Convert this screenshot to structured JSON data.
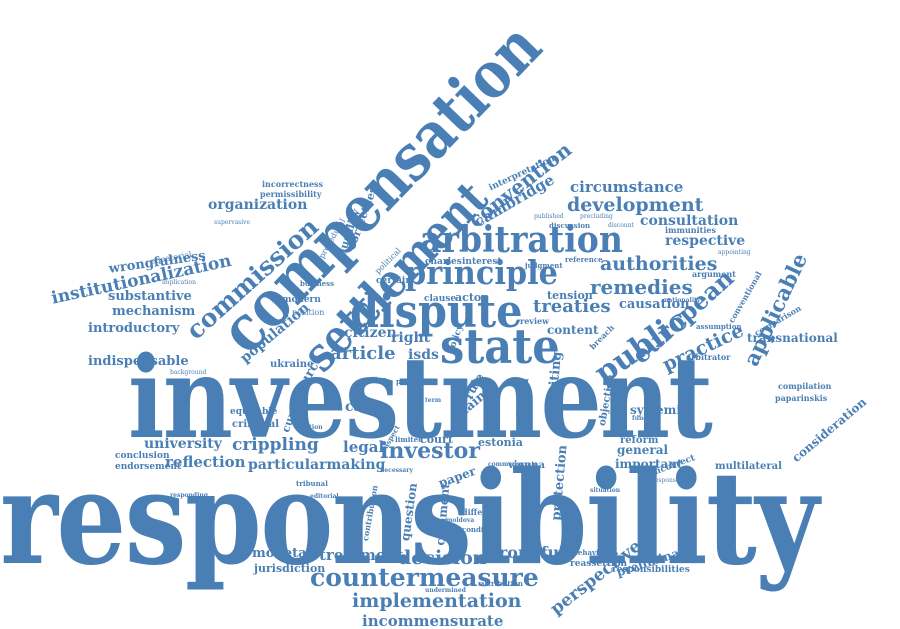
{
  "colors": {
    "word": "#4a7fb5",
    "background": "#ffffff"
  },
  "words": {
    "responsibility": "responsibility",
    "investment": "investment",
    "compensation": "compensation",
    "settlement": "settlement",
    "dispute": "dispute",
    "state": "state",
    "arbitration": "arbitration",
    "principle": "principle",
    "commission": "commission",
    "countermeasure": "countermeasure",
    "implementation": "implementation",
    "incommensurate": "incommensurate",
    "institutionalization": "institutionalization",
    "public": "public",
    "european": "european",
    "applicable": "applicable",
    "practice": "practice",
    "remedies": "remedies",
    "authorities": "authorities",
    "development": "development",
    "convention": "convention",
    "cambridge": "cambridge",
    "circumstance": "circumstance",
    "consultation": "consultation",
    "respective": "respective",
    "treaties": "treaties",
    "organization": "organization",
    "substantive": "substantive",
    "mechanism": "mechanism",
    "introductory": "introductory",
    "wrongfulness": "wrongfulness",
    "equatorial": "equatorial",
    "indispensable": "indispensable",
    "population": "population",
    "article": "article",
    "citizen": "citizen",
    "right": "right",
    "isds": "isds",
    "source": "source",
    "university": "university",
    "crippling": "crippling",
    "reflection": "reflection",
    "particularmaking": "particularmaking",
    "investor": "investor",
    "legal": "legal",
    "case": "case",
    "current": "current",
    "conclusion": "conclusion",
    "endorsement": "endorsement",
    "monetary": "monetary",
    "treatment": "treatment",
    "decision": "decision",
    "wrongful": "wrongful",
    "jurisdiction": "jurisdiction",
    "perspective": "perspective",
    "preliminary": "preliminary",
    "reassertion": "reassertion",
    "responsibilities": "responsibilities",
    "protection": "protection",
    "revisiting": "revisiting",
    "systemic": "systemic",
    "important": "important",
    "general": "general",
    "reform": "reform",
    "incorrect": "incorrect",
    "multilateral": "multilateral",
    "consideration": "consideration",
    "transnational": "transnational",
    "comparison": "comparison",
    "compilation": "compilation",
    "paparinskis": "paparinskis",
    "assumption": "assumption",
    "conventional": "conventional",
    "arbitrator": "arbitrator",
    "causation": "causation",
    "tension": "tension",
    "content": "content",
    "actor": "actor",
    "court": "court",
    "estonia": "estonia",
    "vienna": "vienna",
    "paper": "paper",
    "comment": "comment",
    "question": "question",
    "union": "union",
    "claim": "claim",
    "rule": "rule",
    "objection": "objection",
    "ukraine": "ukraine",
    "criminal": "criminal",
    "equitable": "equitable",
    "modern": "modern",
    "position": "position",
    "certain": "certain",
    "political": "political",
    "correctness": "correctness",
    "causality": "causality",
    "incorrectness": "incorrectness",
    "permissibility": "permissibility",
    "procedural": "procedural",
    "interpretation": "interpretation",
    "judgment": "judgment",
    "interest": "interest",
    "charles": "charles",
    "clause": "clause",
    "discussion": "discussion",
    "reference": "reference",
    "immunities": "immunities",
    "argument": "argument",
    "nationality": "nationality",
    "policy": "policy",
    "different": "different",
    "condition": "condition",
    "commensurate": "commensurate",
    "undermined": "undermined",
    "attribution": "attribution",
    "supervasive": "supervasive",
    "implication": "implication",
    "background": "background",
    "responding": "responding",
    "appointing": "appointing",
    "precluding": "precluding",
    "published": "published",
    "discount": "discount",
    "breach": "breach",
    "review": "review",
    "point": "point",
    "term": "term",
    "business": "business",
    "option": "option",
    "relation": "relation",
    "limited": "limited",
    "aspect": "aspect",
    "tribunal": "tribunal",
    "contribution": "contribution",
    "editorial": "editorial",
    "necessary": "necessary",
    "moldova": "moldova",
    "behaving": "behaving",
    "situation": "situation",
    "function": "function",
    "response": "response"
  }
}
